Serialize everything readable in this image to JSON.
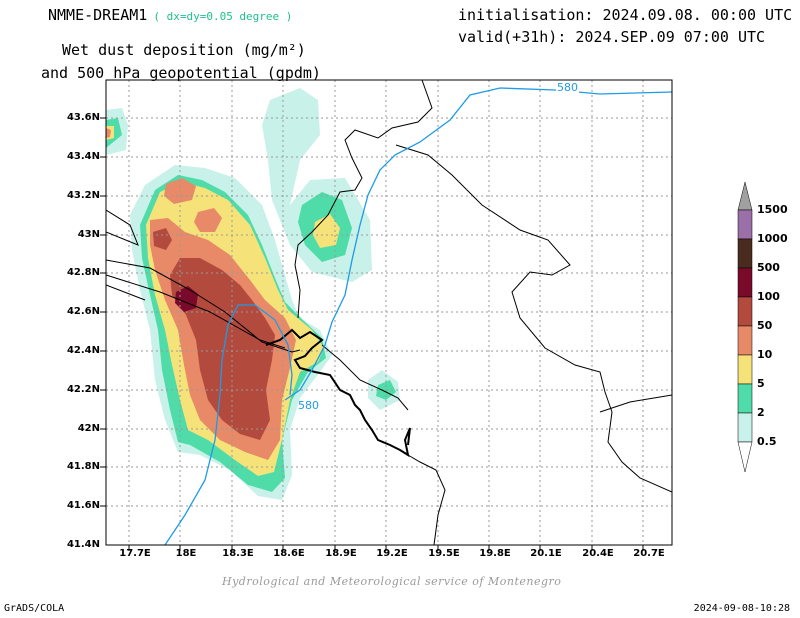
{
  "header": {
    "model": "NMME-DREAM1",
    "resolution": "( dx=dy=0.05 degree )",
    "product_line1": "Wet dust deposition (mg/m²)",
    "product_line2": "and 500 hPa geopotential (gpdm)",
    "initialisation": "initialisation: 2024.09.08. 00:00 UTC",
    "valid": "valid(+31h): 2024.SEP.09 07:00 UTC"
  },
  "map": {
    "lat_ticks": [
      "43.6N",
      "43.4N",
      "43.2N",
      "43N",
      "42.8N",
      "42.6N",
      "42.4N",
      "42.2N",
      "42N",
      "41.8N",
      "41.6N",
      "41.4N"
    ],
    "lon_ticks": [
      "17.7E",
      "18E",
      "18.3E",
      "18.6E",
      "18.9E",
      "19.2E",
      "19.5E",
      "19.8E",
      "20.1E",
      "20.4E",
      "20.7E"
    ],
    "lon_range": [
      17.55,
      20.85
    ],
    "lat_range": [
      41.4,
      43.78
    ],
    "contour_labels": [
      "580",
      "580"
    ],
    "contour_color": "#1e9be6",
    "grid": true
  },
  "colorbar": {
    "labels": [
      "1500",
      "1000",
      "500",
      "100",
      "50",
      "10",
      "5",
      "2",
      "0.5"
    ],
    "colors": [
      "#a0a0a0",
      "#9b6fa8",
      "#4a2c1f",
      "#7a0a2a",
      "#b34a3e",
      "#e88a68",
      "#f5e37a",
      "#4fdca8",
      "#c8f1ea"
    ]
  },
  "footer": {
    "credit": "Hydrological and Meteorological service of Montenegro",
    "left": "GrADS/COLA",
    "right": "2024-09-08-10:28"
  }
}
